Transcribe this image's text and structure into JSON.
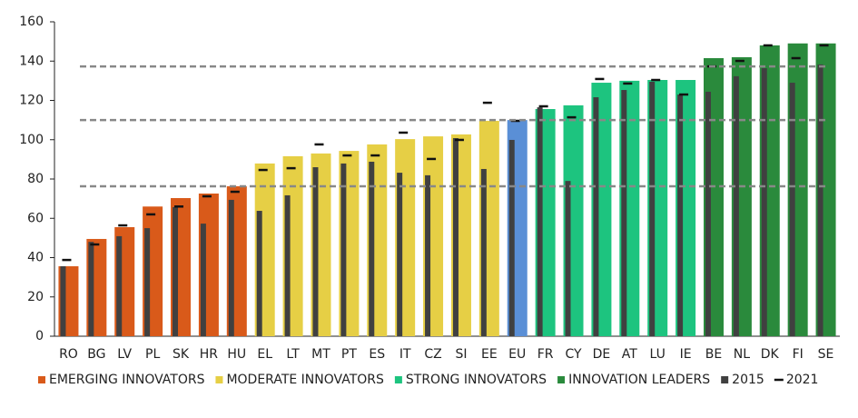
{
  "chart_data": {
    "type": "bar",
    "categories": [
      "RO",
      "BG",
      "LV",
      "PL",
      "SK",
      "HR",
      "HU",
      "EL",
      "LT",
      "MT",
      "PT",
      "ES",
      "IT",
      "CZ",
      "SI",
      "EE",
      "EU",
      "FR",
      "CY",
      "DE",
      "AT",
      "LU",
      "IE",
      "BE",
      "NL",
      "DK",
      "FI",
      "SE"
    ],
    "values": [
      35.6,
      49.5,
      55.5,
      66,
      70.3,
      72.6,
      76.3,
      87.9,
      91.6,
      93,
      94.3,
      97.6,
      100.3,
      101.7,
      102.7,
      109.6,
      110,
      115.6,
      117.5,
      129,
      130,
      130.4,
      130.4,
      141.5,
      142,
      148,
      149,
      149
    ],
    "colors": [
      "#d95a1a",
      "#d95a1a",
      "#d95a1a",
      "#d95a1a",
      "#d95a1a",
      "#d95a1a",
      "#d95a1a",
      "#e6cf45",
      "#e6cf45",
      "#e6cf45",
      "#e6cf45",
      "#e6cf45",
      "#e6cf45",
      "#e6cf45",
      "#e6cf45",
      "#e6cf45",
      "#5a8fd6",
      "#1dc47f",
      "#1dc47f",
      "#1dc47f",
      "#1dc47f",
      "#1dc47f",
      "#1dc47f",
      "#2a8a3c",
      "#2a8a3c",
      "#2a8a3c",
      "#2a8a3c",
      "#2a8a3c"
    ],
    "legend": [
      {
        "name": "EMERGING INNOVATORS",
        "color": "#d95a1a"
      },
      {
        "name": "MODERATE INNOVATORS",
        "color": "#e6cf45"
      },
      {
        "name": "STRONG INNOVATORS",
        "color": "#1dc47f"
      },
      {
        "name": "INNOVATION LEADERS",
        "color": "#2a8a3c"
      }
    ],
    "series": [
      {
        "name": "2015",
        "color": "#404040",
        "values": [
          35.6,
          48,
          50.9,
          55,
          65.7,
          57.3,
          69.4,
          63.8,
          71.7,
          86,
          87.9,
          88.8,
          83.2,
          81.9,
          100.8,
          85.1,
          99.9,
          116.5,
          79,
          121.6,
          125.3,
          129.5,
          123,
          124.4,
          132.3,
          136.4,
          129,
          138.3
        ]
      },
      {
        "name": "2021",
        "color": "#111111",
        "values": [
          38.8,
          46.7,
          56.4,
          62,
          66,
          71.2,
          73.5,
          84.6,
          85.5,
          97.6,
          92,
          92,
          103.6,
          90.2,
          99.9,
          118.8,
          109.6,
          117,
          111.4,
          130.9,
          128.6,
          130.4,
          123,
          137.3,
          140.1,
          148,
          141.5,
          148
        ]
      }
    ],
    "ref_lines": [
      76.3,
      110,
      137.3
    ],
    "ref_color": "#888888",
    "ylim": [
      0,
      160
    ],
    "yticks": [
      0,
      20,
      40,
      60,
      80,
      100,
      120,
      140,
      160
    ]
  }
}
